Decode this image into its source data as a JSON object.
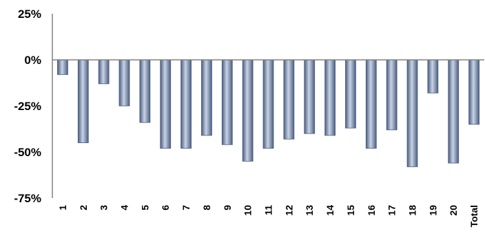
{
  "chart_data": {
    "type": "bar",
    "categories": [
      "1",
      "2",
      "3",
      "4",
      "5",
      "6",
      "7",
      "8",
      "9",
      "10",
      "11",
      "12",
      "13",
      "14",
      "15",
      "16",
      "17",
      "18",
      "19",
      "20",
      "Total"
    ],
    "series": [
      {
        "values": [
          -8,
          -45,
          -13,
          -25,
          -34,
          -48,
          -48,
          -41,
          -46,
          -55,
          -48,
          -43,
          -40,
          -41,
          -37,
          -48,
          -38,
          -58,
          -18,
          -56,
          -35
        ]
      }
    ],
    "yticks": [
      "25%",
      "0%",
      "-25%",
      "-50%",
      "-75%"
    ],
    "ytick_values": [
      25,
      0,
      -25,
      -50,
      -75
    ],
    "ylim": [
      -75,
      25
    ],
    "grid": false,
    "legend": "none",
    "colors": {
      "bar_dark": "#4b5e80",
      "bar_light": "#c9d3e6",
      "axis": "#808080"
    }
  }
}
